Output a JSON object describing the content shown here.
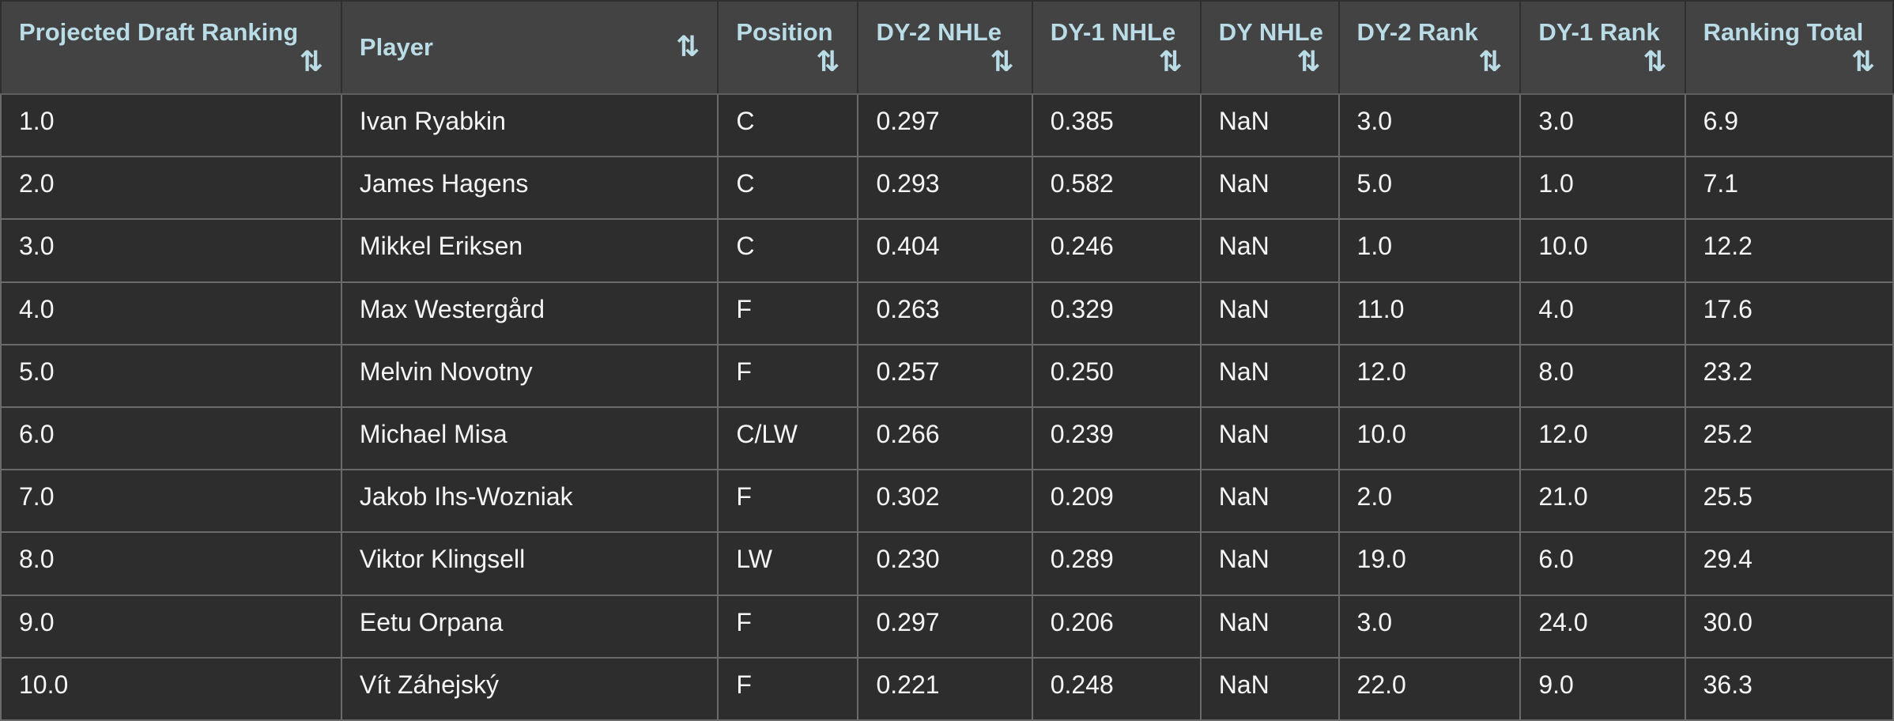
{
  "table": {
    "sort_icon_glyph": "⇅",
    "columns": [
      {
        "id": "projected-draft-ranking",
        "label": "Projected Draft Ranking"
      },
      {
        "id": "player",
        "label": "Player"
      },
      {
        "id": "position",
        "label": "Position"
      },
      {
        "id": "dy-2-nhle",
        "label": "DY-2 NHLe"
      },
      {
        "id": "dy-1-nhle",
        "label": "DY-1 NHLe"
      },
      {
        "id": "dy-nhle",
        "label": "DY NHLe"
      },
      {
        "id": "dy-2-rank",
        "label": "DY-2 Rank"
      },
      {
        "id": "dy-1-rank",
        "label": "DY-1 Rank"
      },
      {
        "id": "ranking-total",
        "label": "Ranking Total"
      }
    ],
    "rows": [
      [
        "1.0",
        "Ivan Ryabkin",
        "C",
        "0.297",
        "0.385",
        "NaN",
        "3.0",
        "3.0",
        "6.9"
      ],
      [
        "2.0",
        "James Hagens",
        "C",
        "0.293",
        "0.582",
        "NaN",
        "5.0",
        "1.0",
        "7.1"
      ],
      [
        "3.0",
        "Mikkel Eriksen",
        "C",
        "0.404",
        "0.246",
        "NaN",
        "1.0",
        "10.0",
        "12.2"
      ],
      [
        "4.0",
        "Max Westergård",
        "F",
        "0.263",
        "0.329",
        "NaN",
        "11.0",
        "4.0",
        "17.6"
      ],
      [
        "5.0",
        "Melvin Novotny",
        "F",
        "0.257",
        "0.250",
        "NaN",
        "12.0",
        "8.0",
        "23.2"
      ],
      [
        "6.0",
        "Michael Misa",
        "C/LW",
        "0.266",
        "0.239",
        "NaN",
        "10.0",
        "12.0",
        "25.2"
      ],
      [
        "7.0",
        "Jakob Ihs-Wozniak",
        "F",
        "0.302",
        "0.209",
        "NaN",
        "2.0",
        "21.0",
        "25.5"
      ],
      [
        "8.0",
        "Viktor Klingsell",
        "LW",
        "0.230",
        "0.289",
        "NaN",
        "19.0",
        "6.0",
        "29.4"
      ],
      [
        "9.0",
        "Eetu Orpana",
        "F",
        "0.297",
        "0.206",
        "NaN",
        "3.0",
        "24.0",
        "30.0"
      ],
      [
        "10.0",
        "Vít Záhejský",
        "F",
        "0.221",
        "0.248",
        "NaN",
        "22.0",
        "9.0",
        "36.3"
      ]
    ]
  },
  "colors": {
    "header_bg": "#434343",
    "row_bg": "#2d2d2d",
    "header_text": "#b9dce6",
    "body_text": "#f5f5f5",
    "header_grid": "#2f2f2f",
    "header_bottom_border": "#5e5e5e",
    "body_grid": "#6a6a6a"
  }
}
